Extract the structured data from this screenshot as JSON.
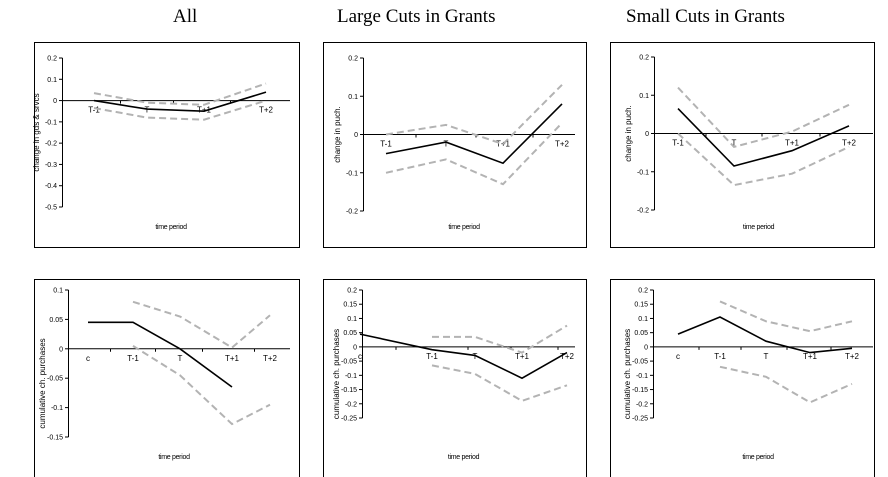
{
  "column_titles": [
    "All",
    "Large Cuts in Grants",
    "Small Cuts in Grants"
  ],
  "colors": {
    "mean_line": "#000000",
    "band_line": "#b3b3b3",
    "axis": "#000000",
    "frame": "#000000"
  },
  "chart_data": [
    {
      "type": "line",
      "categories": [
        "T-1",
        "T",
        "T+1",
        "T+2"
      ],
      "xlabel": "time period",
      "ylabel": "change in gds & srvcs",
      "ylim": [
        -0.5,
        0.2
      ],
      "yticks": [
        "0.2",
        "0.1",
        "0",
        "-0.1",
        "-0.2",
        "-0.3",
        "-0.4",
        "-0.5"
      ],
      "grid": false,
      "series": [
        {
          "values": [
            0.0,
            -0.04,
            -0.05,
            0.04
          ],
          "style": "solid"
        },
        {
          "values": [
            0.035,
            -0.01,
            -0.02,
            0.08
          ],
          "style": "dashed"
        },
        {
          "values": [
            -0.035,
            -0.08,
            -0.09,
            0.0
          ],
          "style": "dashed"
        }
      ]
    },
    {
      "type": "line",
      "categories": [
        "T-1",
        "T",
        "T+1",
        "T+2"
      ],
      "xlabel": "time period",
      "ylabel": "change in puch.",
      "ylim": [
        -0.2,
        0.2
      ],
      "yticks": [
        "0.2",
        "0.1",
        "0",
        "-0.1",
        "-0.2"
      ],
      "grid": false,
      "series": [
        {
          "values": [
            -0.05,
            -0.02,
            -0.075,
            0.08
          ],
          "style": "solid"
        },
        {
          "values": [
            0.0,
            0.025,
            -0.025,
            0.13
          ],
          "style": "dashed"
        },
        {
          "values": [
            -0.1,
            -0.065,
            -0.13,
            0.03
          ],
          "style": "dashed"
        }
      ]
    },
    {
      "type": "line",
      "categories": [
        "T-1",
        "T",
        "T+1",
        "T+2"
      ],
      "xlabel": "time period",
      "ylabel": "change in puch.",
      "ylim": [
        -0.2,
        0.2
      ],
      "yticks": [
        "0.2",
        "0.1",
        "0",
        "-0.1",
        "-0.2"
      ],
      "grid": false,
      "series": [
        {
          "values": [
            0.065,
            -0.085,
            -0.045,
            0.02
          ],
          "style": "solid"
        },
        {
          "values": [
            0.12,
            -0.035,
            0.005,
            0.075
          ],
          "style": "dashed"
        },
        {
          "values": [
            0.0,
            -0.135,
            -0.105,
            -0.035
          ],
          "style": "dashed"
        }
      ]
    },
    {
      "type": "line",
      "categories": [
        "c",
        "T-1",
        "T",
        "T+1",
        "T+2"
      ],
      "xlabel": "time period",
      "ylabel": "cumulative ch. purchases",
      "ylim": [
        -0.15,
        0.1
      ],
      "yticks": [
        "0.1",
        "0.05",
        "0",
        "-0.05",
        "-0.1",
        "-0.15"
      ],
      "grid": false,
      "series": [
        {
          "values": [
            0.045,
            0.045,
            0.0,
            -0.065,
            null
          ],
          "style": "solid"
        },
        {
          "values": [
            null,
            0.08,
            0.055,
            0.002,
            0.057
          ],
          "style": "dashed"
        },
        {
          "values": [
            null,
            0.005,
            -0.045,
            -0.128,
            -0.095
          ],
          "style": "dashed"
        }
      ]
    },
    {
      "type": "line",
      "categories": [
        "c",
        "T-1",
        "T",
        "T+1",
        "T+2"
      ],
      "xlabel": "time period",
      "ylabel": "cumulative ch. purchases",
      "ylim": [
        -0.25,
        0.2
      ],
      "yticks": [
        "0.2",
        "0.15",
        "0.1",
        "0.05",
        "0",
        "-0.05",
        "-0.1",
        "-0.15",
        "-0.2",
        "-0.25"
      ],
      "grid": false,
      "series": [
        {
          "values": [
            0.045,
            -0.01,
            -0.03,
            -0.11,
            -0.02
          ],
          "style": "solid"
        },
        {
          "values": [
            null,
            0.035,
            0.035,
            -0.02,
            0.075
          ],
          "style": "dashed"
        },
        {
          "values": [
            null,
            -0.065,
            -0.095,
            -0.19,
            -0.135
          ],
          "style": "dashed"
        }
      ]
    },
    {
      "type": "line",
      "categories": [
        "c",
        "T-1",
        "T",
        "T+1",
        "T+2"
      ],
      "xlabel": "time period",
      "ylabel": "cumulative ch. purchases",
      "ylim": [
        -0.25,
        0.2
      ],
      "yticks": [
        "0.2",
        "0.15",
        "0.1",
        "0.05",
        "0",
        "-0.05",
        "-0.1",
        "-0.15",
        "-0.2",
        "-0.25"
      ],
      "grid": false,
      "series": [
        {
          "values": [
            0.045,
            0.105,
            0.02,
            -0.02,
            -0.005
          ],
          "style": "solid"
        },
        {
          "values": [
            null,
            0.16,
            0.09,
            0.055,
            0.09
          ],
          "style": "dashed"
        },
        {
          "values": [
            null,
            -0.07,
            -0.105,
            -0.195,
            -0.13
          ],
          "style": "dashed"
        }
      ]
    }
  ]
}
